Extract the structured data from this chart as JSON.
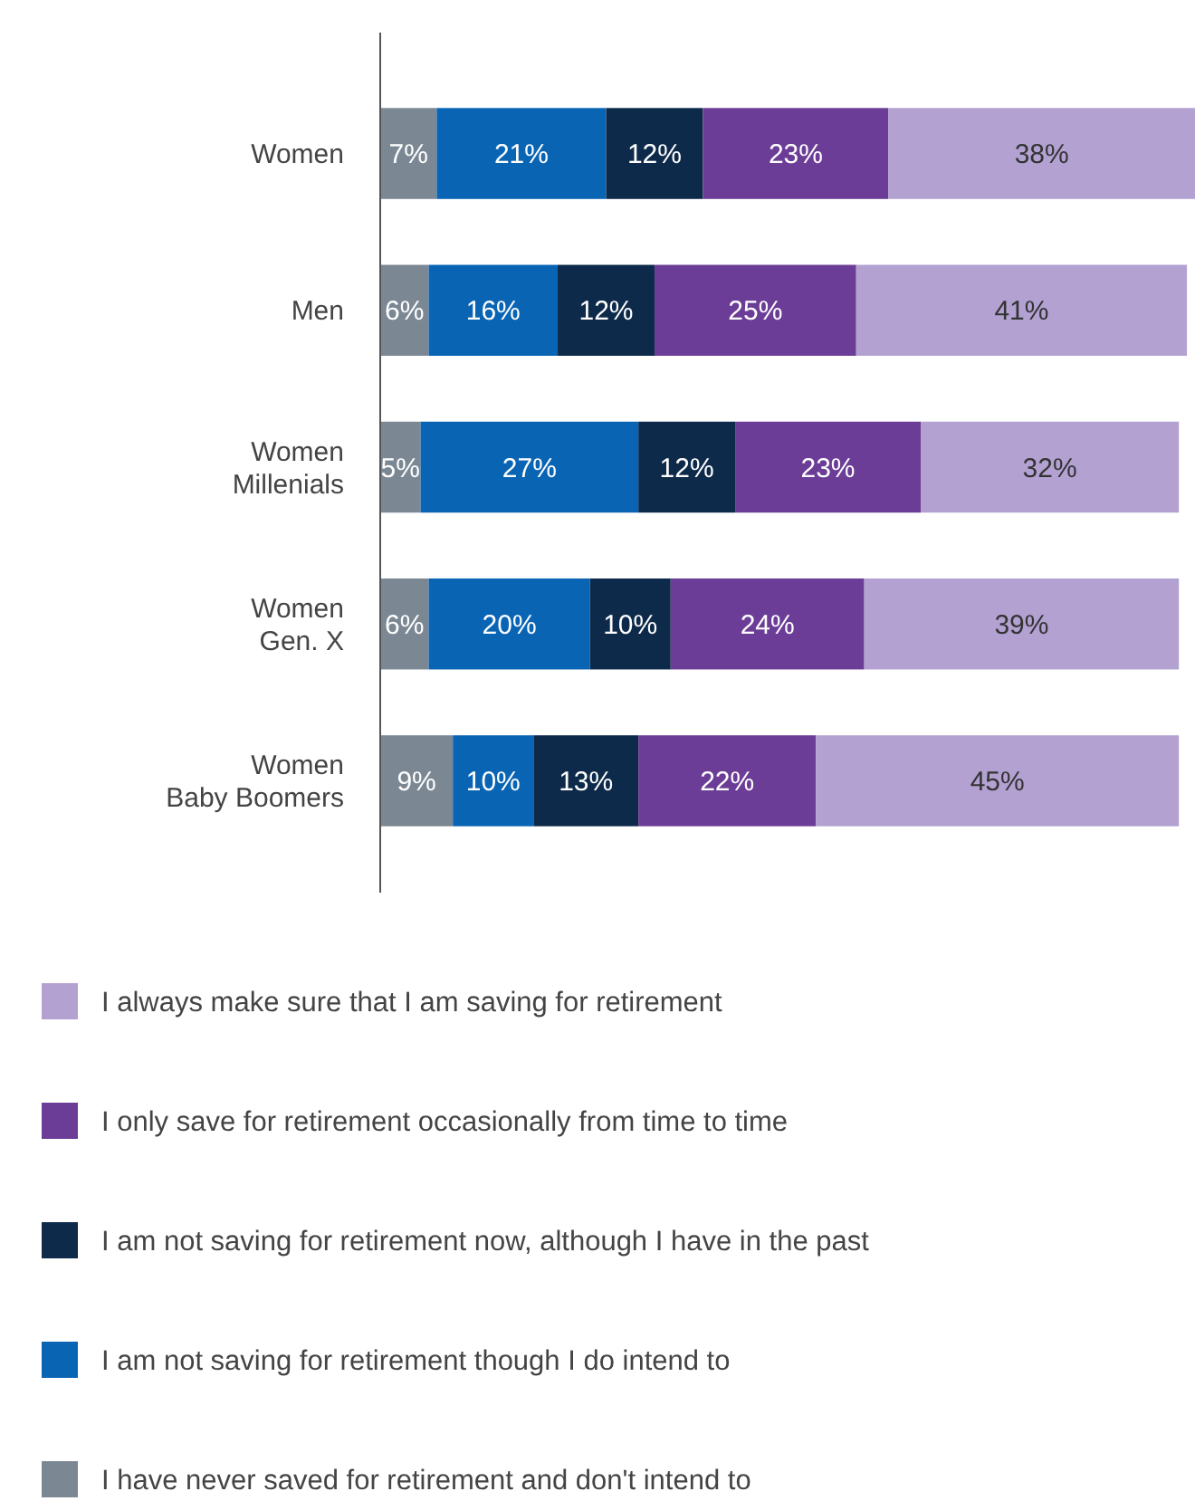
{
  "chart_data": {
    "type": "bar",
    "orientation": "horizontal",
    "stacked": true,
    "legend": "bottom",
    "categories": [
      "Women",
      "Men",
      "Women\nMillenials",
      "Women\nGen. X",
      "Women\nBaby Boomers"
    ],
    "series": [
      {
        "name": "I have never saved for retirement and don't intend to",
        "color": "#7b8894",
        "values": [
          7,
          6,
          5,
          6,
          9
        ],
        "value_labels": [
          "7%",
          "6%",
          "5%",
          "6%",
          "9%"
        ]
      },
      {
        "name": "I am not saving for retirement though I do intend to",
        "color": "#0a64b4",
        "values": [
          21,
          16,
          27,
          20,
          10
        ],
        "value_labels": [
          "21%",
          "16%",
          "27%",
          "20%",
          "10%"
        ]
      },
      {
        "name": "I am not saving for retirement now, although I have in the past",
        "color": "#0d2a4a",
        "values": [
          12,
          12,
          12,
          10,
          13
        ],
        "value_labels": [
          "12%",
          "12%",
          "12%",
          "10%",
          "13%"
        ]
      },
      {
        "name": "I only save for retirement occasionally from time to time",
        "color": "#6b3d96",
        "values": [
          23,
          25,
          23,
          24,
          22
        ],
        "value_labels": [
          "23%",
          "25%",
          "23%",
          "24%",
          "22%"
        ]
      },
      {
        "name": "I always make sure that I am saving for retirement",
        "color": "#b3a1d2",
        "values": [
          38,
          41,
          32,
          39,
          45
        ],
        "value_labels": [
          "38%",
          "41%",
          "32%",
          "39%",
          "45%"
        ]
      }
    ]
  }
}
